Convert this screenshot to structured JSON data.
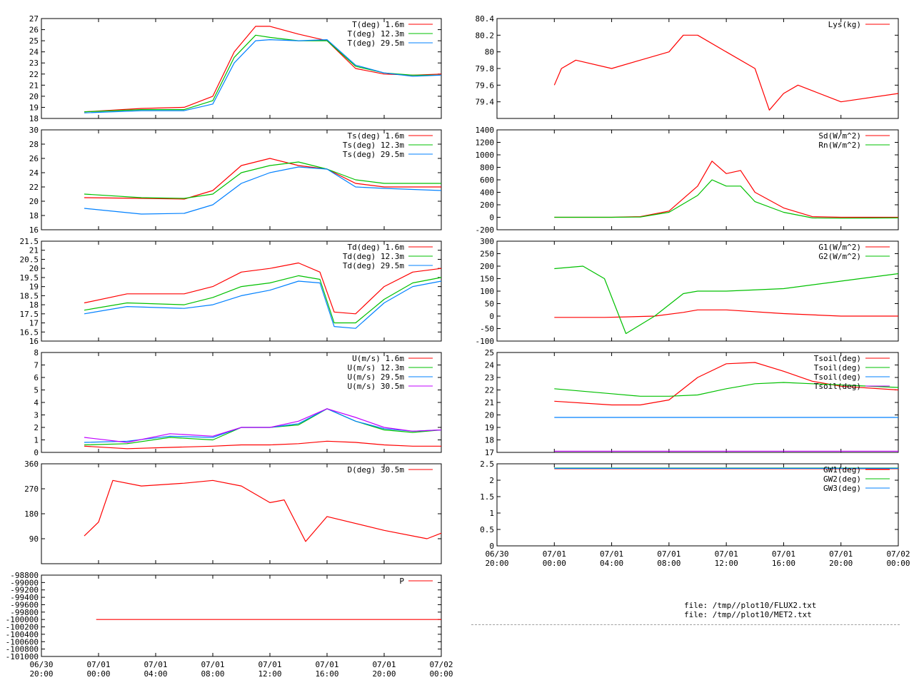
{
  "chart_data": [
    {
      "type": "line",
      "ylim": [
        18,
        27
      ],
      "yticks": [
        "18",
        "19",
        "20",
        "21",
        "22",
        "23",
        "24",
        "25",
        "26",
        "27"
      ],
      "xticks": [],
      "x": [
        "06/30 23:00",
        "07/01 03:00",
        "07/01 06:00",
        "07/01 08:00",
        "07/01 09:30",
        "07/01 11:00",
        "07/01 12:00",
        "07/01 14:00",
        "07/01 16:00",
        "07/01 18:00",
        "07/01 20:00",
        "07/01 22:00",
        "07/02 00:00"
      ],
      "series": [
        {
          "name": "T(deg)  1.6m",
          "color": "#ff0000",
          "values": [
            18.6,
            18.9,
            19.0,
            20.0,
            24.0,
            26.3,
            26.3,
            25.6,
            25.0,
            22.5,
            22.0,
            21.9,
            22.0
          ]
        },
        {
          "name": "T(deg) 12.3m",
          "color": "#00c000",
          "values": [
            18.6,
            18.8,
            18.8,
            19.6,
            23.5,
            25.5,
            25.3,
            25.0,
            25.0,
            22.7,
            22.1,
            21.9,
            21.9
          ]
        },
        {
          "name": "T(deg) 29.5m",
          "color": "#0080ff",
          "values": [
            18.5,
            18.7,
            18.7,
            19.3,
            23.0,
            25.0,
            25.1,
            25.0,
            25.1,
            22.8,
            22.1,
            21.8,
            21.9
          ]
        }
      ]
    },
    {
      "type": "line",
      "ylim": [
        79.2,
        80.4
      ],
      "yticks": [
        "79.4",
        "79.6",
        "79.8",
        "80",
        "80.2",
        "80.4"
      ],
      "xticks": [],
      "x": [
        "07/01 00:00",
        "07/01 00:30",
        "07/01 01:30",
        "07/01 04:00",
        "07/01 06:00",
        "07/01 08:00",
        "07/01 09:00",
        "07/01 10:00",
        "07/01 12:00",
        "07/01 14:00",
        "07/01 15:00",
        "07/01 16:00",
        "07/01 17:00",
        "07/01 20:00",
        "07/02 00:00"
      ],
      "series": [
        {
          "name": "Lys(kg)",
          "color": "#ff0000",
          "values": [
            79.6,
            79.8,
            79.9,
            79.8,
            79.9,
            80.0,
            80.2,
            80.2,
            80.0,
            79.8,
            79.3,
            79.5,
            79.6,
            79.4,
            79.5
          ]
        }
      ]
    },
    {
      "type": "line",
      "ylim": [
        16,
        30
      ],
      "yticks": [
        "16",
        "18",
        "20",
        "22",
        "24",
        "26",
        "28",
        "30"
      ],
      "xticks": [],
      "x": [
        "06/30 23:00",
        "07/01 03:00",
        "07/01 06:00",
        "07/01 08:00",
        "07/01 10:00",
        "07/01 12:00",
        "07/01 14:00",
        "07/01 16:00",
        "07/01 18:00",
        "07/01 20:00",
        "07/02 00:00"
      ],
      "series": [
        {
          "name": "Ts(deg)  1.6m",
          "color": "#ff0000",
          "values": [
            20.5,
            20.4,
            20.3,
            21.5,
            25.0,
            26.0,
            25.0,
            24.5,
            22.5,
            22.0,
            22.0
          ]
        },
        {
          "name": "Ts(deg) 12.3m",
          "color": "#00c000",
          "values": [
            21.0,
            20.5,
            20.4,
            21.0,
            24.0,
            25.0,
            25.5,
            24.5,
            23.0,
            22.5,
            22.5
          ]
        },
        {
          "name": "Ts(deg) 29.5m",
          "color": "#0080ff",
          "values": [
            19.0,
            18.2,
            18.3,
            19.5,
            22.5,
            24.0,
            24.8,
            24.5,
            22.0,
            21.8,
            21.5
          ]
        }
      ]
    },
    {
      "type": "line",
      "ylim": [
        -200,
        1400
      ],
      "yticks": [
        "-200",
        "0",
        "200",
        "400",
        "600",
        "800",
        "1000",
        "1200",
        "1400"
      ],
      "xticks": [],
      "x": [
        "07/01 00:00",
        "07/01 04:00",
        "07/01 06:00",
        "07/01 08:00",
        "07/01 10:00",
        "07/01 11:00",
        "07/01 12:00",
        "07/01 13:00",
        "07/01 14:00",
        "07/01 16:00",
        "07/01 18:00",
        "07/01 20:00",
        "07/02 00:00"
      ],
      "series": [
        {
          "name": "Sd(W/m^2)",
          "color": "#ff0000",
          "values": [
            0,
            0,
            10,
            100,
            500,
            900,
            700,
            750,
            400,
            150,
            10,
            0,
            0
          ]
        },
        {
          "name": "Rn(W/m^2)",
          "color": "#00c000",
          "values": [
            0,
            0,
            5,
            80,
            350,
            600,
            500,
            500,
            250,
            80,
            -10,
            -15,
            -10
          ]
        }
      ]
    },
    {
      "type": "line",
      "ylim": [
        16,
        21.5
      ],
      "yticks": [
        "16",
        "16.5",
        "17",
        "17.5",
        "18",
        "18.5",
        "19",
        "19.5",
        "20",
        "20.5",
        "21",
        "21.5"
      ],
      "xticks": [],
      "x": [
        "06/30 23:00",
        "07/01 02:00",
        "07/01 06:00",
        "07/01 08:00",
        "07/01 10:00",
        "07/01 12:00",
        "07/01 14:00",
        "07/01 15:30",
        "07/01 16:30",
        "07/01 18:00",
        "07/01 20:00",
        "07/01 22:00",
        "07/02 00:00"
      ],
      "series": [
        {
          "name": "Td(deg)  1.6m",
          "color": "#ff0000",
          "values": [
            18.1,
            18.6,
            18.6,
            19.0,
            19.8,
            20.0,
            20.3,
            19.8,
            17.6,
            17.5,
            19.0,
            19.8,
            20.0
          ]
        },
        {
          "name": "Td(deg) 12.3m",
          "color": "#00c000",
          "values": [
            17.7,
            18.1,
            18.0,
            18.4,
            19.0,
            19.2,
            19.6,
            19.4,
            17.0,
            17.0,
            18.3,
            19.2,
            19.5
          ]
        },
        {
          "name": "Td(deg) 29.5m",
          "color": "#0080ff",
          "values": [
            17.5,
            17.9,
            17.8,
            18.0,
            18.5,
            18.8,
            19.3,
            19.2,
            16.8,
            16.7,
            18.1,
            19.0,
            19.3
          ]
        }
      ]
    },
    {
      "type": "line",
      "ylim": [
        -100,
        300
      ],
      "yticks": [
        "-100",
        "-50",
        "0",
        "50",
        "100",
        "150",
        "200",
        "250",
        "300"
      ],
      "xticks": [],
      "x": [
        "07/01 00:00",
        "07/01 02:00",
        "07/01 03:30",
        "07/01 05:00",
        "07/01 07:00",
        "07/01 09:00",
        "07/01 10:00",
        "07/01 12:00",
        "07/01 16:00",
        "07/01 20:00",
        "07/02 00:00"
      ],
      "series": [
        {
          "name": "G1(W/m^2)",
          "color": "#ff0000",
          "values": [
            -5,
            -5,
            -5,
            -3,
            0,
            15,
            25,
            25,
            10,
            0,
            0
          ]
        },
        {
          "name": "G2(W/m^2)",
          "color": "#00c000",
          "values": [
            190,
            200,
            150,
            -70,
            0,
            90,
            100,
            100,
            110,
            140,
            170
          ]
        }
      ]
    },
    {
      "type": "line",
      "ylim": [
        0,
        8
      ],
      "yticks": [
        "0",
        "1",
        "2",
        "3",
        "4",
        "5",
        "6",
        "7",
        "8"
      ],
      "xticks": [],
      "x": [
        "06/30 23:00",
        "07/01 02:00",
        "07/01 05:00",
        "07/01 08:00",
        "07/01 10:00",
        "07/01 12:00",
        "07/01 14:00",
        "07/01 16:00",
        "07/01 18:00",
        "07/01 20:00",
        "07/01 22:00",
        "07/02 00:00"
      ],
      "series": [
        {
          "name": "U(m/s)  1.6m",
          "color": "#ff0000",
          "values": [
            0.5,
            0.3,
            0.4,
            0.5,
            0.6,
            0.6,
            0.7,
            0.9,
            0.8,
            0.6,
            0.5,
            0.5
          ]
        },
        {
          "name": "U(m/s) 12.3m",
          "color": "#00c000",
          "values": [
            0.6,
            0.7,
            1.2,
            1.0,
            2.0,
            2.0,
            2.2,
            3.5,
            2.5,
            1.8,
            1.6,
            1.8
          ]
        },
        {
          "name": "U(m/s) 29.5m",
          "color": "#0080ff",
          "values": [
            0.8,
            0.9,
            1.3,
            1.2,
            2.0,
            2.0,
            2.3,
            3.5,
            2.5,
            1.9,
            1.7,
            1.8
          ]
        },
        {
          "name": "U(m/s) 30.5m",
          "color": "#c000ff",
          "values": [
            1.2,
            0.8,
            1.5,
            1.3,
            2.0,
            2.0,
            2.5,
            3.5,
            2.8,
            2.0,
            1.7,
            1.8
          ]
        }
      ]
    },
    {
      "type": "line",
      "ylim": [
        17,
        25
      ],
      "yticks": [
        "17",
        "18",
        "19",
        "20",
        "21",
        "22",
        "23",
        "24",
        "25"
      ],
      "xticks": [],
      "x": [
        "07/01 00:00",
        "07/01 04:00",
        "07/01 06:00",
        "07/01 08:00",
        "07/01 10:00",
        "07/01 12:00",
        "07/01 14:00",
        "07/01 16:00",
        "07/01 18:00",
        "07/01 20:00",
        "07/02 00:00"
      ],
      "series": [
        {
          "name": "Tsoil(deg)",
          "color": "#ff0000",
          "values": [
            21.1,
            20.8,
            20.8,
            21.2,
            23.0,
            24.1,
            24.2,
            23.5,
            22.7,
            22.3,
            22.0
          ]
        },
        {
          "name": "Tsoil(deg)",
          "color": "#00c000",
          "values": [
            22.1,
            21.7,
            21.5,
            21.5,
            21.6,
            22.1,
            22.5,
            22.6,
            22.5,
            22.4,
            22.2
          ]
        },
        {
          "name": "Tsoil(deg)",
          "color": "#0080ff",
          "values": [
            19.8,
            19.8,
            19.8,
            19.8,
            19.8,
            19.8,
            19.8,
            19.8,
            19.8,
            19.8,
            19.8
          ]
        },
        {
          "name": "Tsoil(deg)",
          "color": "#c000ff",
          "values": [
            17.1,
            17.1,
            17.1,
            17.1,
            17.1,
            17.1,
            17.1,
            17.1,
            17.1,
            17.1,
            17.1
          ]
        }
      ]
    },
    {
      "type": "line",
      "ylim": [
        0,
        360
      ],
      "yticks": [
        "90",
        "180",
        "270",
        "360"
      ],
      "xticks": [],
      "x": [
        "06/30 23:00",
        "07/01 00:00",
        "07/01 01:00",
        "07/01 03:00",
        "07/01 06:00",
        "07/01 08:00",
        "07/01 10:00",
        "07/01 12:00",
        "07/01 13:00",
        "07/01 14:30",
        "07/01 16:00",
        "07/01 20:00",
        "07/01 23:00",
        "07/02 00:00"
      ],
      "series": [
        {
          "name": "D(deg)  30.5m",
          "color": "#ff0000",
          "values": [
            100,
            150,
            300,
            280,
            290,
            300,
            280,
            220,
            230,
            80,
            170,
            120,
            90,
            110
          ]
        }
      ]
    },
    {
      "type": "line",
      "ylim": [
        0,
        2.5
      ],
      "yticks": [
        "0",
        "0.5",
        "1",
        "1.5",
        "2",
        "2.5"
      ],
      "xticks": [
        "06/30|20:00",
        "07/01|00:00",
        "07/01|04:00",
        "07/01|08:00",
        "07/01|12:00",
        "07/01|16:00",
        "07/01|20:00",
        "07/02|00:00"
      ],
      "x": [
        "07/01 00:00",
        "07/01 12:00",
        "07/02 00:00"
      ],
      "series": [
        {
          "name": "GW1(deg)",
          "color": "#ff0000",
          "values": [
            2.35,
            2.35,
            2.35
          ]
        },
        {
          "name": "GW2(deg)",
          "color": "#00c000",
          "values": [
            2.37,
            2.37,
            2.37
          ]
        },
        {
          "name": "GW3(deg)",
          "color": "#0080ff",
          "values": [
            2.36,
            2.36,
            2.36
          ]
        }
      ]
    },
    {
      "type": "line",
      "ylim": [
        -101000,
        -98800
      ],
      "yticks": [
        "-101000",
        "-100800",
        "-100600",
        "-100400",
        "-100200",
        "-100000",
        "-99800",
        "-99600",
        "-99400",
        "-99200",
        "-99000",
        "-98800"
      ],
      "xticks": [
        "06/30|20:00",
        "07/01|00:00",
        "07/01|04:00",
        "07/01|08:00",
        "07/01|12:00",
        "07/01|16:00",
        "07/01|20:00",
        "07/02|00:00"
      ],
      "x": [
        "06/30 23:50",
        "07/02 00:00"
      ],
      "series": [
        {
          "name": "P",
          "color": "#ff0000",
          "values": [
            -100000,
            -100000
          ]
        }
      ]
    }
  ],
  "files": [
    "file: /tmp//plot10/FLUX2.txt",
    "file: /tmp//plot10/MET2.txt"
  ]
}
